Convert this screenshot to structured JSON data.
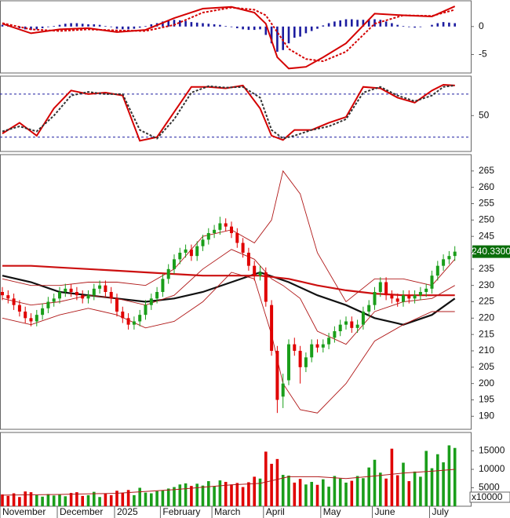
{
  "chart_data": [
    {
      "type": "macd",
      "ylim": [
        -8.3,
        4.6
      ],
      "yticks": [
        0,
        -5
      ],
      "histogram": {
        "color": "#1c1ca0",
        "values": [
          0.3,
          0.2,
          0.0,
          -0.3,
          -0.5,
          -0.6,
          -0.5,
          -0.3,
          -0.1,
          0.1,
          0.3,
          0.5,
          0.6,
          0.6,
          0.5,
          0.4,
          0.4,
          0.3,
          0.1,
          -0.1,
          -0.4,
          -0.5,
          -0.5,
          -0.4,
          -0.2,
          0.1,
          0.4,
          0.6,
          0.9,
          1.1,
          1.2,
          1.1,
          1.0,
          0.8,
          0.7,
          0.6,
          0.5,
          0.4,
          0.3,
          0.1,
          -0.1,
          -0.3,
          -0.5,
          -0.6,
          -0.6,
          -0.5,
          -1.5,
          -3.0,
          -4.5,
          -4.2,
          -3.0,
          -2.0,
          -1.8,
          -1.2,
          -0.8,
          -0.4,
          0.2,
          0.6,
          0.9,
          1.1,
          1.3,
          1.3,
          1.2,
          1.2,
          1.3,
          1.3,
          1.2,
          0.9,
          0.6,
          0.3,
          0.1,
          -0.1,
          -0.2,
          -0.1,
          0.0,
          0.3,
          0.6,
          0.8,
          0.7,
          0.6
        ]
      },
      "series": [
        {
          "color": "#d40000",
          "dashed": false,
          "x": [
            0,
            5,
            10,
            15,
            20,
            25,
            30,
            35,
            40,
            44,
            46,
            48,
            50,
            53,
            56,
            60,
            65,
            70,
            75,
            79
          ],
          "values": [
            0.5,
            -1.2,
            -0.5,
            -0.3,
            -1.0,
            -0.6,
            1.5,
            3.2,
            3.5,
            2.5,
            0.5,
            -5.5,
            -7.5,
            -7.2,
            -5.5,
            -3.0,
            2.3,
            2.0,
            1.8,
            3.6
          ]
        },
        {
          "color": "#d40000",
          "dashed": true,
          "x": [
            0,
            5,
            10,
            15,
            20,
            25,
            30,
            35,
            40,
            44,
            46,
            48,
            50,
            53,
            56,
            60,
            65,
            70,
            75,
            79
          ],
          "values": [
            0.6,
            -0.5,
            -0.8,
            -0.5,
            -0.7,
            -0.8,
            0.3,
            2.5,
            3.4,
            3.0,
            2.0,
            -1.0,
            -4.0,
            -5.8,
            -6.2,
            -4.5,
            0.5,
            2.0,
            1.9,
            3.0
          ]
        }
      ]
    },
    {
      "type": "line",
      "ylim": [
        0,
        105
      ],
      "yticks": [
        50
      ],
      "levels": [
        80,
        20
      ],
      "level_color": "#1c1ca0",
      "series": [
        {
          "color": "#d40000",
          "dashed": false,
          "x": [
            0,
            3,
            6,
            9,
            12,
            15,
            18,
            21,
            24,
            27,
            30,
            33,
            36,
            39,
            42,
            45,
            47,
            49,
            51,
            54,
            57,
            60,
            63,
            66,
            69,
            72,
            75,
            77,
            79
          ],
          "values": [
            25,
            40,
            22,
            60,
            85,
            80,
            82,
            78,
            15,
            20,
            55,
            90,
            90,
            88,
            92,
            60,
            22,
            16,
            30,
            30,
            40,
            48,
            90,
            88,
            75,
            68,
            85,
            93,
            92
          ]
        },
        {
          "color": "#333333",
          "dashed": true,
          "x": [
            0,
            3,
            6,
            9,
            12,
            15,
            18,
            21,
            24,
            27,
            30,
            33,
            36,
            39,
            42,
            45,
            47,
            49,
            51,
            54,
            57,
            60,
            63,
            66,
            69,
            72,
            75,
            77,
            79
          ],
          "values": [
            28,
            35,
            28,
            50,
            78,
            83,
            80,
            80,
            30,
            18,
            45,
            82,
            91,
            89,
            90,
            75,
            30,
            18,
            22,
            30,
            35,
            45,
            82,
            90,
            78,
            70,
            78,
            90,
            92
          ]
        }
      ]
    },
    {
      "type": "candlestick",
      "ylim": [
        186,
        270
      ],
      "yticks": [
        190,
        195,
        200,
        205,
        210,
        215,
        220,
        225,
        230,
        235,
        240,
        245,
        250,
        255,
        260,
        265
      ],
      "up_color": "#1a9e1a",
      "down_color": "#e00000",
      "last_label": "240.3300",
      "last_color": "#0a6e0a",
      "open": [
        228,
        227,
        226,
        224,
        222,
        220,
        219,
        221,
        223,
        225,
        226,
        228,
        229,
        228,
        227,
        226,
        227,
        229,
        230,
        228,
        226,
        222,
        220,
        218,
        219,
        221,
        224,
        226,
        228,
        232,
        235,
        238,
        240,
        241,
        239,
        242,
        244,
        246,
        247,
        249,
        248,
        246,
        243,
        240,
        236,
        233,
        234,
        224,
        210,
        196,
        201,
        212,
        210,
        205,
        208,
        212,
        211,
        212,
        214,
        216,
        218,
        219,
        217,
        218,
        222,
        224,
        228,
        231,
        227,
        226,
        225,
        227,
        226,
        227,
        228,
        229,
        233,
        236,
        238,
        239
      ],
      "high": [
        229.5,
        228.5,
        227.5,
        225.5,
        223.5,
        221.5,
        222.5,
        224.5,
        226.5,
        227.5,
        229.5,
        230.5,
        230.5,
        229.5,
        228.5,
        228.5,
        230.5,
        231.5,
        231.5,
        229.5,
        227.5,
        223.5,
        221.5,
        220.5,
        222.5,
        225.5,
        227.5,
        229.5,
        233.5,
        236.5,
        239.5,
        241.5,
        242.5,
        242.5,
        243.5,
        245.5,
        247.5,
        248.5,
        251,
        250.5,
        249.5,
        247.5,
        244.5,
        241.5,
        237.5,
        236,
        235.5,
        225.5,
        211.5,
        203,
        213.5,
        214,
        211.5,
        209.5,
        213.5,
        213.5,
        213.5,
        215.5,
        217.5,
        219.5,
        220.5,
        220.5,
        219.5,
        223.5,
        225.5,
        229.5,
        232.5,
        232.5,
        228.5,
        227.5,
        228.5,
        228.5,
        228.5,
        229.5,
        230.5,
        234.5,
        237.5,
        239.5,
        240.5,
        242
      ],
      "low": [
        225.5,
        224.5,
        222.5,
        220.5,
        218.5,
        217.5,
        217.5,
        219.5,
        221.5,
        223.5,
        224.5,
        226.5,
        226.5,
        225.5,
        224.5,
        224.5,
        225.5,
        227.5,
        226.5,
        224.5,
        220.5,
        218.5,
        216.5,
        216.5,
        217.5,
        219.5,
        222.5,
        224.5,
        226.5,
        230.5,
        233.5,
        236.5,
        238.5,
        237.5,
        237.5,
        240.5,
        242.5,
        244.5,
        245.5,
        246.5,
        244.5,
        241.5,
        238.5,
        234.5,
        231.5,
        231.5,
        223.5,
        208.5,
        191,
        192.5,
        199.5,
        208.5,
        200,
        203.5,
        206.5,
        209.5,
        209.5,
        210.5,
        212.5,
        214.5,
        216.5,
        215.5,
        215.5,
        216.5,
        220.5,
        222.5,
        226.5,
        225.5,
        224.5,
        223.5,
        223.5,
        224.5,
        224.5,
        225.5,
        226.5,
        227.5,
        231.5,
        234.5,
        236.5,
        237.5
      ],
      "close": [
        227,
        226,
        224,
        222,
        220,
        219,
        221,
        223,
        225,
        226,
        228,
        229,
        228,
        227,
        226,
        227,
        229,
        230,
        228,
        226,
        222,
        220,
        218,
        219,
        221,
        224,
        226,
        228,
        232,
        235,
        238,
        240,
        241,
        239,
        242,
        244,
        246,
        247,
        249,
        248,
        246,
        243,
        240,
        236,
        233,
        234,
        225,
        210,
        195,
        200,
        212,
        210,
        205,
        208,
        212,
        211,
        212,
        214,
        216,
        218,
        219,
        217,
        218,
        222,
        224,
        228,
        231,
        227,
        226,
        225,
        227,
        226,
        227,
        228,
        229,
        233,
        236,
        238,
        239,
        240.33
      ],
      "series": [
        {
          "color": "#111111",
          "width": 2.2,
          "x": [
            0,
            5,
            10,
            15,
            20,
            25,
            30,
            35,
            40,
            45,
            50,
            55,
            60,
            65,
            70,
            75,
            79
          ],
          "values": [
            233,
            231,
            228,
            227,
            226,
            225,
            226,
            228,
            231,
            234,
            231,
            227,
            224,
            220,
            218,
            221,
            226
          ]
        },
        {
          "color": "#cc1010",
          "width": 2.2,
          "x": [
            0,
            5,
            10,
            15,
            20,
            25,
            30,
            35,
            40,
            45,
            50,
            55,
            60,
            65,
            70,
            75,
            79
          ],
          "values": [
            236,
            236,
            235.5,
            235,
            234.5,
            234,
            233.5,
            233,
            233,
            233,
            232,
            230,
            228.5,
            227.5,
            227,
            227,
            227
          ]
        },
        {
          "color": "#b01818",
          "width": 0.9,
          "x": [
            0,
            5,
            10,
            15,
            20,
            25,
            30,
            35,
            40,
            44,
            47,
            49,
            52,
            55,
            60,
            65,
            70,
            75,
            79
          ],
          "values": [
            232,
            230,
            230,
            231,
            231,
            230,
            235,
            245,
            247,
            243,
            250,
            265,
            258,
            240,
            225,
            232,
            232,
            230,
            238
          ]
        },
        {
          "color": "#b01818",
          "width": 0.9,
          "x": [
            0,
            5,
            10,
            15,
            20,
            25,
            30,
            35,
            40,
            44,
            47,
            49,
            52,
            55,
            60,
            65,
            70,
            75,
            79
          ],
          "values": [
            226,
            224,
            225,
            227,
            226,
            224,
            227,
            235,
            241,
            238,
            232,
            230,
            226,
            216,
            212,
            222,
            225,
            226,
            230
          ]
        },
        {
          "color": "#b01818",
          "width": 0.9,
          "x": [
            0,
            5,
            10,
            15,
            20,
            25,
            30,
            35,
            40,
            44,
            47,
            49,
            52,
            55,
            60,
            65,
            70,
            75,
            79
          ],
          "values": [
            220,
            218,
            221,
            223,
            221,
            217,
            219,
            225,
            234,
            232,
            215,
            200,
            192,
            191,
            200,
            213,
            218,
            222,
            222
          ]
        }
      ]
    },
    {
      "type": "bar",
      "ylim": [
        0,
        20000
      ],
      "yticks": [
        5000,
        10000,
        15000
      ],
      "unit_label": "x10000",
      "values": [
        3200,
        2800,
        3500,
        2500,
        4000,
        3800,
        3000,
        2600,
        3300,
        2900,
        3100,
        2700,
        3600,
        3800,
        2800,
        3000,
        3900,
        2500,
        3400,
        3000,
        4200,
        3600,
        4400,
        3000,
        5000,
        3700,
        3500,
        4100,
        4300,
        4800,
        5200,
        5900,
        6200,
        5500,
        6100,
        5600,
        6800,
        5400,
        7000,
        6600,
        5900,
        6300,
        5200,
        6500,
        8000,
        7500,
        14800,
        11500,
        12800,
        8500,
        8300,
        6400,
        7400,
        5900,
        6600,
        5800,
        7300,
        5300,
        8200,
        7500,
        6400,
        6900,
        8200,
        7600,
        10500,
        12600,
        9100,
        7500,
        15600,
        8400,
        11800,
        6800,
        9400,
        8000,
        15000,
        10300,
        14100,
        11900,
        16500,
        15800
      ],
      "series": [
        {
          "color": "#b01818",
          "width": 1,
          "x": [
            0,
            10,
            20,
            30,
            40,
            45,
            50,
            55,
            60,
            65,
            70,
            75,
            79
          ],
          "values": [
            3000,
            3200,
            3500,
            4500,
            5800,
            6200,
            8000,
            8000,
            7500,
            8200,
            9000,
            9500,
            10000
          ]
        }
      ],
      "x_labels": [
        "November",
        "December",
        "2025",
        "February",
        "March",
        "April",
        "May",
        "June",
        "July"
      ],
      "x_label_index": [
        0,
        10,
        20,
        28,
        37,
        46,
        56,
        65,
        75
      ]
    }
  ]
}
